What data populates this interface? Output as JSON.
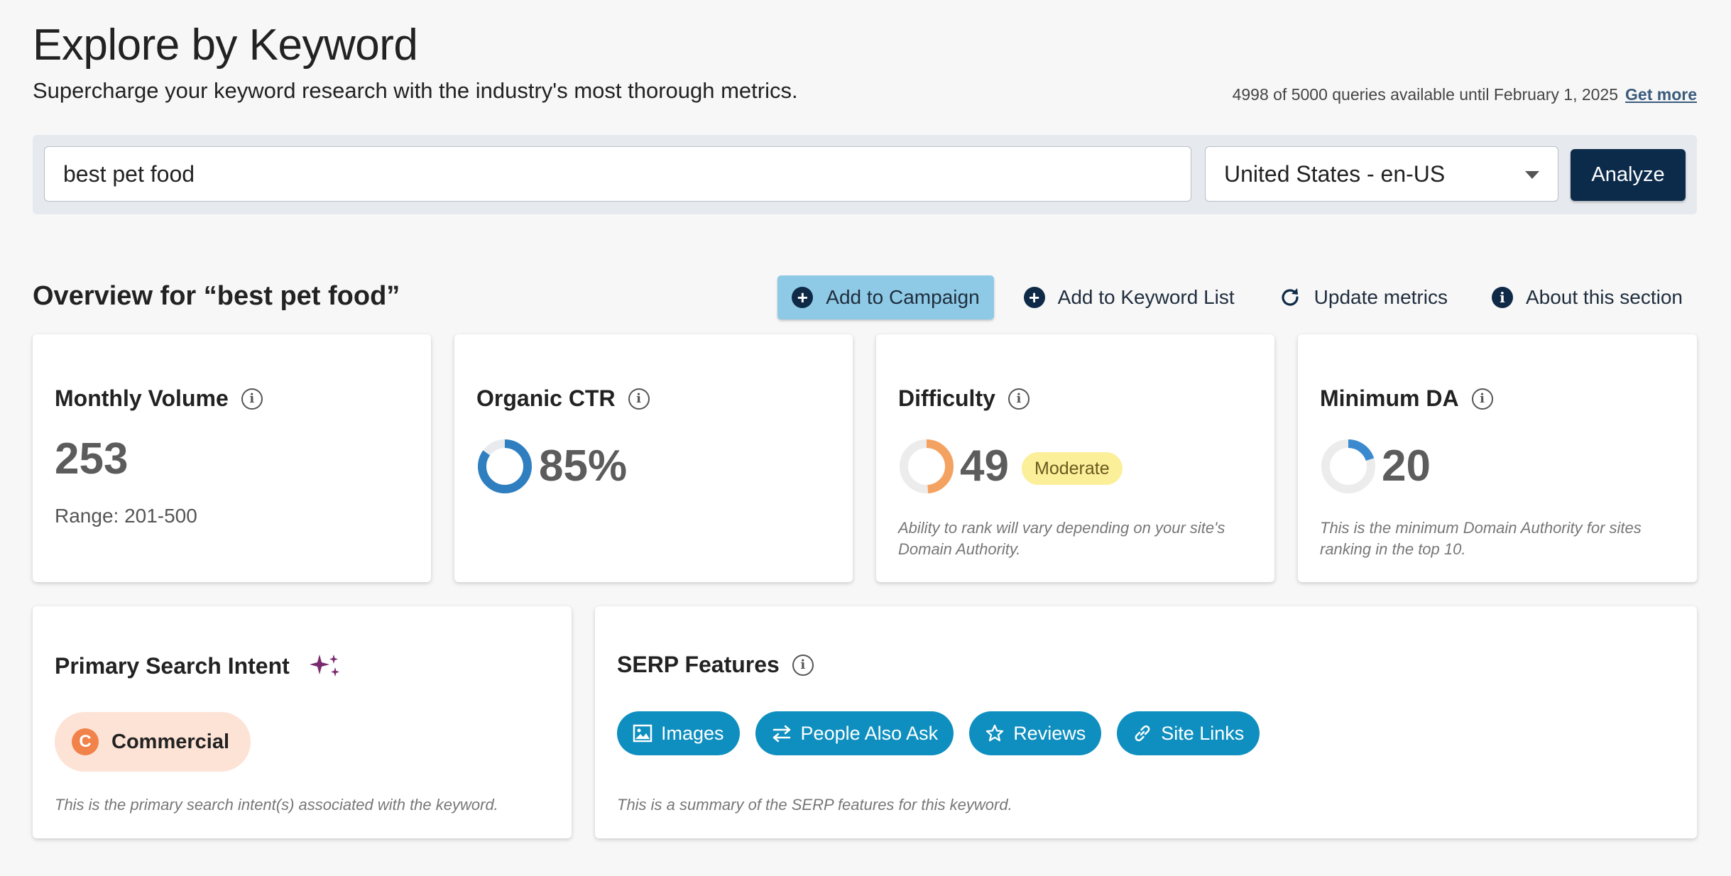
{
  "header": {
    "title": "Explore by Keyword",
    "subtitle": "Supercharge your keyword research with the industry's most thorough metrics.",
    "quota_text": "4998 of 5000 queries available until February 1, 2025",
    "get_more_label": "Get more"
  },
  "search": {
    "keyword_value": "best pet food",
    "locale_value": "United States - en-US",
    "analyze_label": "Analyze"
  },
  "overview": {
    "title": "Overview for “best pet food”",
    "actions": {
      "add_campaign": "Add to Campaign",
      "add_keyword_list": "Add to Keyword List",
      "update_metrics": "Update metrics",
      "about_section": "About this section"
    }
  },
  "metrics": {
    "monthly_volume": {
      "title": "Monthly Volume",
      "value": "253",
      "range": "Range: 201-500"
    },
    "organic_ctr": {
      "title": "Organic CTR",
      "value": "85%",
      "fraction": 0.85
    },
    "difficulty": {
      "title": "Difficulty",
      "value": "49",
      "fraction": 0.49,
      "badge": "Moderate",
      "note": "Ability to rank will vary depending on your site's Domain Authority."
    },
    "minimum_da": {
      "title": "Minimum DA",
      "value": "20",
      "fraction": 0.2,
      "note": "This is the minimum Domain Authority for sites ranking in the top 10."
    }
  },
  "intent": {
    "title": "Primary Search Intent",
    "badge_letter": "C",
    "value": "Commercial",
    "note": "This is the primary search intent(s) associated with the keyword."
  },
  "serp": {
    "title": "SERP Features",
    "features": [
      "Images",
      "People Also Ask",
      "Reviews",
      "Site Links"
    ],
    "note": "This is a summary of the SERP features for this keyword."
  },
  "colors": {
    "navy": "#0c2b4a",
    "campaign_button": "#8ecae6",
    "chip": "#0f8fbf",
    "ctr_ring": "#2f7fc0",
    "difficulty_ring": "#f4a261",
    "da_ring": "#3b8ad0",
    "moderate_badge": "#fbef9a",
    "commercial_badge": "#fde3d6",
    "commercial_icon": "#f0824a",
    "sparkle": "#7a2a6e"
  }
}
